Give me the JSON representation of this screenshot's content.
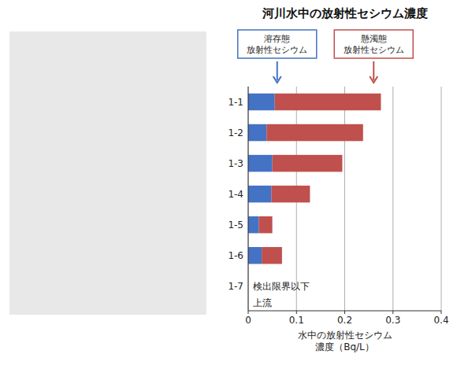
{
  "chart_data": {
    "type": "bar",
    "orientation": "horizontal",
    "stacked": true,
    "title": "河川水中の放射性セシウム濃度",
    "categories": [
      "1-1",
      "1-2",
      "1-3",
      "1-4",
      "1-5",
      "1-6",
      "1-7"
    ],
    "series": [
      {
        "name": "溶存態\n放射性セシウム",
        "color": "#4472C4",
        "values": [
          0.055,
          0.038,
          0.05,
          0.048,
          0.022,
          0.028,
          0.0
        ]
      },
      {
        "name": "懸濁態\n放射性セシウム",
        "color": "#C0504D",
        "values": [
          0.22,
          0.2,
          0.145,
          0.08,
          0.028,
          0.042,
          0.0
        ]
      }
    ],
    "xlabel": "水中の放射性セシウム\n濃度（Bq/L）",
    "xlim": [
      0,
      0.4
    ],
    "xticks": [
      0,
      0.1,
      0.2,
      0.3,
      0.4
    ],
    "grid": true,
    "legend": "top",
    "annotations": [
      "検出限界以下",
      "上流"
    ]
  }
}
